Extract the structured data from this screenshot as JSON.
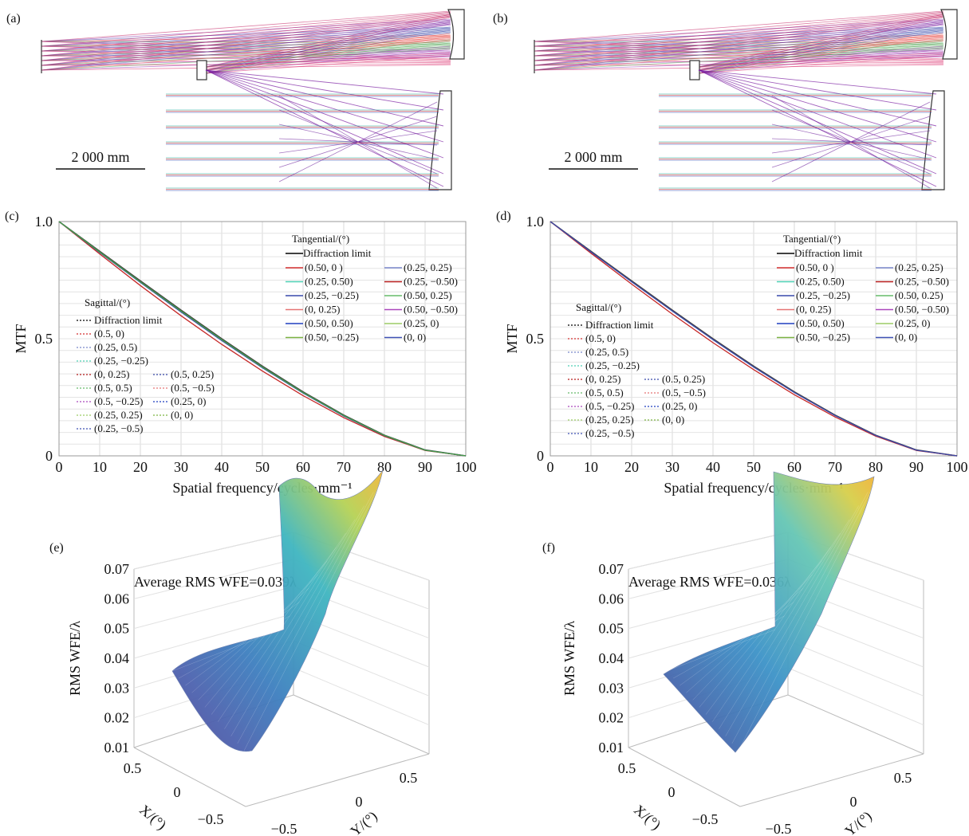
{
  "panels": {
    "a": "(a)",
    "b": "(b)",
    "c": "(c)",
    "d": "(d)",
    "e": "(e)",
    "f": "(f)"
  },
  "scale_bar": "2 000 mm",
  "chart_data": [
    {
      "panel": "c",
      "type": "line",
      "xlabel": "Spatial frequency/cycles·mm⁻¹",
      "ylabel": "MTF",
      "xlim": [
        0,
        100
      ],
      "ylim": [
        0,
        1.0
      ],
      "xticks": [
        "0",
        "10",
        "20",
        "30",
        "40",
        "50",
        "60",
        "70",
        "80",
        "90",
        "100"
      ],
      "yticks": [
        "0",
        "0.5",
        "1.0"
      ],
      "grid": true,
      "x": [
        0,
        10,
        20,
        30,
        40,
        50,
        60,
        70,
        80,
        90,
        100
      ],
      "tangential_title": "Tangential/(°)",
      "sagittal_title": "Sagittal/(°)",
      "tangential_legend": [
        "Diffraction limit",
        "(0.50, 0 )",
        "(0.25, 0.25)",
        "(0.25, 0.50)",
        "(0.25, −0.50)",
        "(0.25, −0.25)",
        "(0.50, 0.25)",
        "(0, 0.25)",
        "(0.50, −0.50)",
        "(0.50, 0.50)",
        "(0.25, 0)",
        "(0.50, −0.25)",
        "(0, 0)"
      ],
      "sagittal_legend": [
        "Diffraction limit",
        "(0.5, 0)",
        "(0.25, 0.5)",
        "(0.25, −0.25)",
        "(0, 0.25)",
        "(0.5, 0.25)",
        "(0.5, 0.5)",
        "(0.5, −0.5)",
        "(0.5, −0.25)",
        "(0.25, 0)",
        "(0.25, 0.25)",
        "(0, 0)",
        "(0.25, −0.5)"
      ],
      "series": [
        {
          "name": "Diffraction limit",
          "values": [
            1.0,
            0.873,
            0.747,
            0.622,
            0.5,
            0.383,
            0.273,
            0.174,
            0.088,
            0.025,
            0.0
          ]
        },
        {
          "name": "(0.50, 0 )",
          "values": [
            1.0,
            0.862,
            0.727,
            0.598,
            0.476,
            0.362,
            0.257,
            0.163,
            0.083,
            0.023,
            0.0
          ]
        },
        {
          "name": "(0.25, 0.25)",
          "values": [
            1.0,
            0.868,
            0.74,
            0.614,
            0.492,
            0.376,
            0.268,
            0.17,
            0.086,
            0.024,
            0.0
          ]
        },
        {
          "name": "(0.25, 0.50)",
          "values": [
            1.0,
            0.87,
            0.743,
            0.618,
            0.496,
            0.379,
            0.27,
            0.172,
            0.087,
            0.024,
            0.0
          ]
        }
      ]
    },
    {
      "panel": "d",
      "type": "line",
      "xlabel": "Spatial frequency/cycles·mm⁻¹",
      "ylabel": "MTF",
      "xlim": [
        0,
        100
      ],
      "ylim": [
        0,
        1.0
      ],
      "xticks": [
        "0",
        "10",
        "20",
        "30",
        "40",
        "50",
        "60",
        "70",
        "80",
        "90",
        "100"
      ],
      "yticks": [
        "0",
        "0.5",
        "1.0"
      ],
      "grid": true,
      "x": [
        0,
        10,
        20,
        30,
        40,
        50,
        60,
        70,
        80,
        90,
        100
      ],
      "tangential_title": "Tangential/(°)",
      "sagittal_title": "Sagittal/(°)",
      "tangential_legend": [
        "Diffraction limit",
        "(0.50, 0 )",
        "(0.25, 0.25)",
        "(0.25, 0.50)",
        "(0.25, −0.50)",
        "(0.25, −0.25)",
        "(0.50, 0.25)",
        "(0, 0.25)",
        "(0.50, −0.50)",
        "(0.50, 0.50)",
        "(0.25, 0)",
        "(0.50, −0.25)",
        "(0, 0)"
      ],
      "sagittal_legend": [
        "Diffraction limit",
        "(0.5, 0)",
        "(0.25, 0.5)",
        "(0.25, −0.25)",
        "(0, 0.25)",
        "(0.5, 0.25)",
        "(0.5, 0.5)",
        "(0.5, −0.5)",
        "(0.5, −0.25)",
        "(0.25, 0)",
        "(0.25, 0.25)",
        "(0, 0)",
        "(0.25, −0.5)"
      ],
      "series": [
        {
          "name": "Diffraction limit",
          "values": [
            1.0,
            0.873,
            0.747,
            0.622,
            0.5,
            0.383,
            0.273,
            0.174,
            0.088,
            0.025,
            0.0
          ]
        },
        {
          "name": "(0.50, 0 )",
          "values": [
            1.0,
            0.865,
            0.733,
            0.605,
            0.483,
            0.368,
            0.261,
            0.166,
            0.084,
            0.023,
            0.0
          ]
        },
        {
          "name": "(0.50, 0.50)",
          "values": [
            1.0,
            0.87,
            0.743,
            0.618,
            0.496,
            0.379,
            0.27,
            0.172,
            0.087,
            0.024,
            0.0
          ]
        }
      ]
    },
    {
      "panel": "e",
      "type": "surface",
      "title": "Average RMS  WFE=0.039λ",
      "zlabel": "RMS WFE/λ",
      "xlabel": "X/(°)",
      "ylabel": "Y/(°)",
      "zticks": [
        "0.01",
        "0.02",
        "0.03",
        "0.04",
        "0.05",
        "0.06",
        "0.07"
      ],
      "xticks": [
        "0.5",
        "0",
        "−0.5"
      ],
      "yticks": [
        "−0.5",
        "0",
        "0.5"
      ],
      "zlim": [
        0.01,
        0.07
      ]
    },
    {
      "panel": "f",
      "type": "surface",
      "title": "Average RMS  WFE=0.036λ",
      "zlabel": "RMS WFE/λ",
      "xlabel": "X/(°)",
      "ylabel": "Y/(°)",
      "zticks": [
        "0.01",
        "0.02",
        "0.03",
        "0.04",
        "0.05",
        "0.06",
        "0.07"
      ],
      "xticks": [
        "0.5",
        "0",
        "−0.5"
      ],
      "yticks": [
        "−0.5",
        "0",
        "0.5"
      ],
      "zlim": [
        0.01,
        0.07
      ]
    }
  ]
}
